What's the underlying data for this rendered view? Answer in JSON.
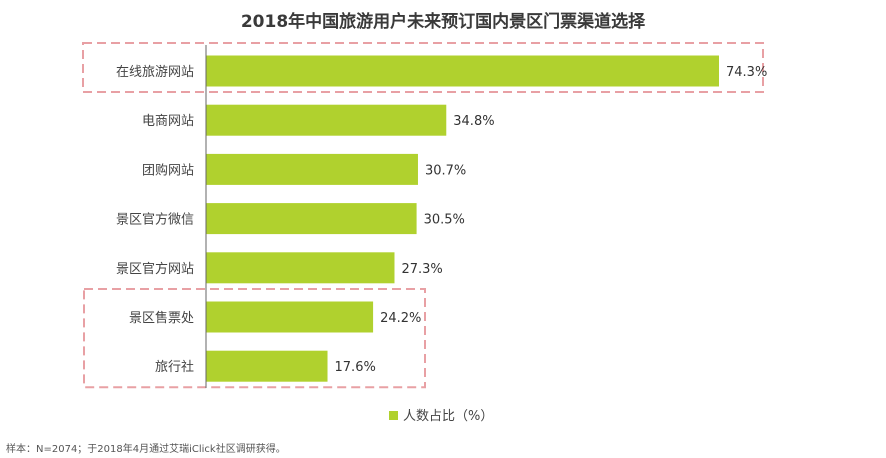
{
  "chart_data": {
    "type": "bar",
    "orientation": "horizontal",
    "title": "2018年中国旅游用户未来预订国内景区门票渠道选择",
    "categories": [
      "在线旅游网站",
      "电商网站",
      "团购网站",
      "景区官方微信",
      "景区官方网站",
      "景区售票处",
      "旅行社"
    ],
    "series": [
      {
        "name": "人数占比（%）",
        "values": [
          74.3,
          34.8,
          30.7,
          30.5,
          27.3,
          24.2,
          17.6
        ],
        "data_labels": [
          "74.3%",
          "34.8%",
          "30.7%",
          "30.5%",
          "27.3%",
          "24.2%",
          "17.6%"
        ]
      }
    ],
    "xlim": [
      0,
      74.3
    ],
    "grid": false,
    "legend_position": "bottom",
    "highlight_groups": [
      [
        "在线旅游网站"
      ],
      [
        "景区售票处",
        "旅行社"
      ]
    ]
  },
  "colors": {
    "bar": "#b0d12e",
    "highlight_border": "#e8a0a4",
    "axis": "#666666"
  },
  "source_note": "样本：N=2074；于2018年4月通过艾瑞iClick社区调研获得。"
}
